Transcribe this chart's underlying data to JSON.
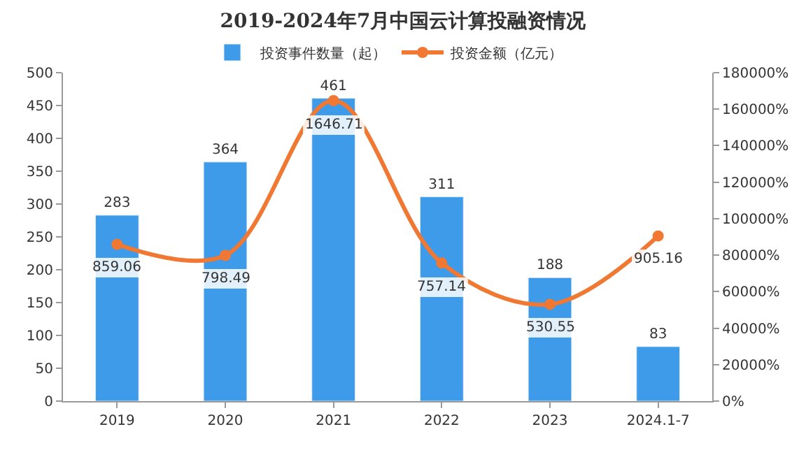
{
  "chart_data": {
    "type": "bar",
    "title": "2019-2024年7月中国云计算投融资情况",
    "categories": [
      "2019",
      "2020",
      "2021",
      "2022",
      "2023",
      "2024.1-7"
    ],
    "series": [
      {
        "name": "投资事件数量（起）",
        "color": "#3d9be9",
        "values": [
          283,
          364,
          461,
          311,
          188,
          83
        ]
      },
      {
        "name": "投资金额（亿元）",
        "type": "line",
        "axis": "y2",
        "color": "#f07832",
        "marker": "circle",
        "line_style": "solid",
        "values": [
          859.06,
          798.49,
          1646.71,
          757.14,
          530.55,
          905.16
        ]
      }
    ],
    "ylim": [
      0,
      500
    ],
    "yticks": [
      0,
      50,
      100,
      150,
      200,
      250,
      300,
      350,
      400,
      450,
      500
    ],
    "y2lim": [
      0,
      1800
    ],
    "y2ticks": [
      {
        "value": 0,
        "label": "0%"
      },
      {
        "value": 200,
        "label": "20000%"
      },
      {
        "value": 400,
        "label": "40000%"
      },
      {
        "value": 600,
        "label": "60000%"
      },
      {
        "value": 800,
        "label": "80000%"
      },
      {
        "value": 1000,
        "label": "100000%"
      },
      {
        "value": 1200,
        "label": "120000%"
      },
      {
        "value": 1400,
        "label": "140000%"
      },
      {
        "value": 1600,
        "label": "160000%"
      },
      {
        "value": 1800,
        "label": "180000%"
      }
    ],
    "data_labels": true,
    "legend": "top"
  }
}
